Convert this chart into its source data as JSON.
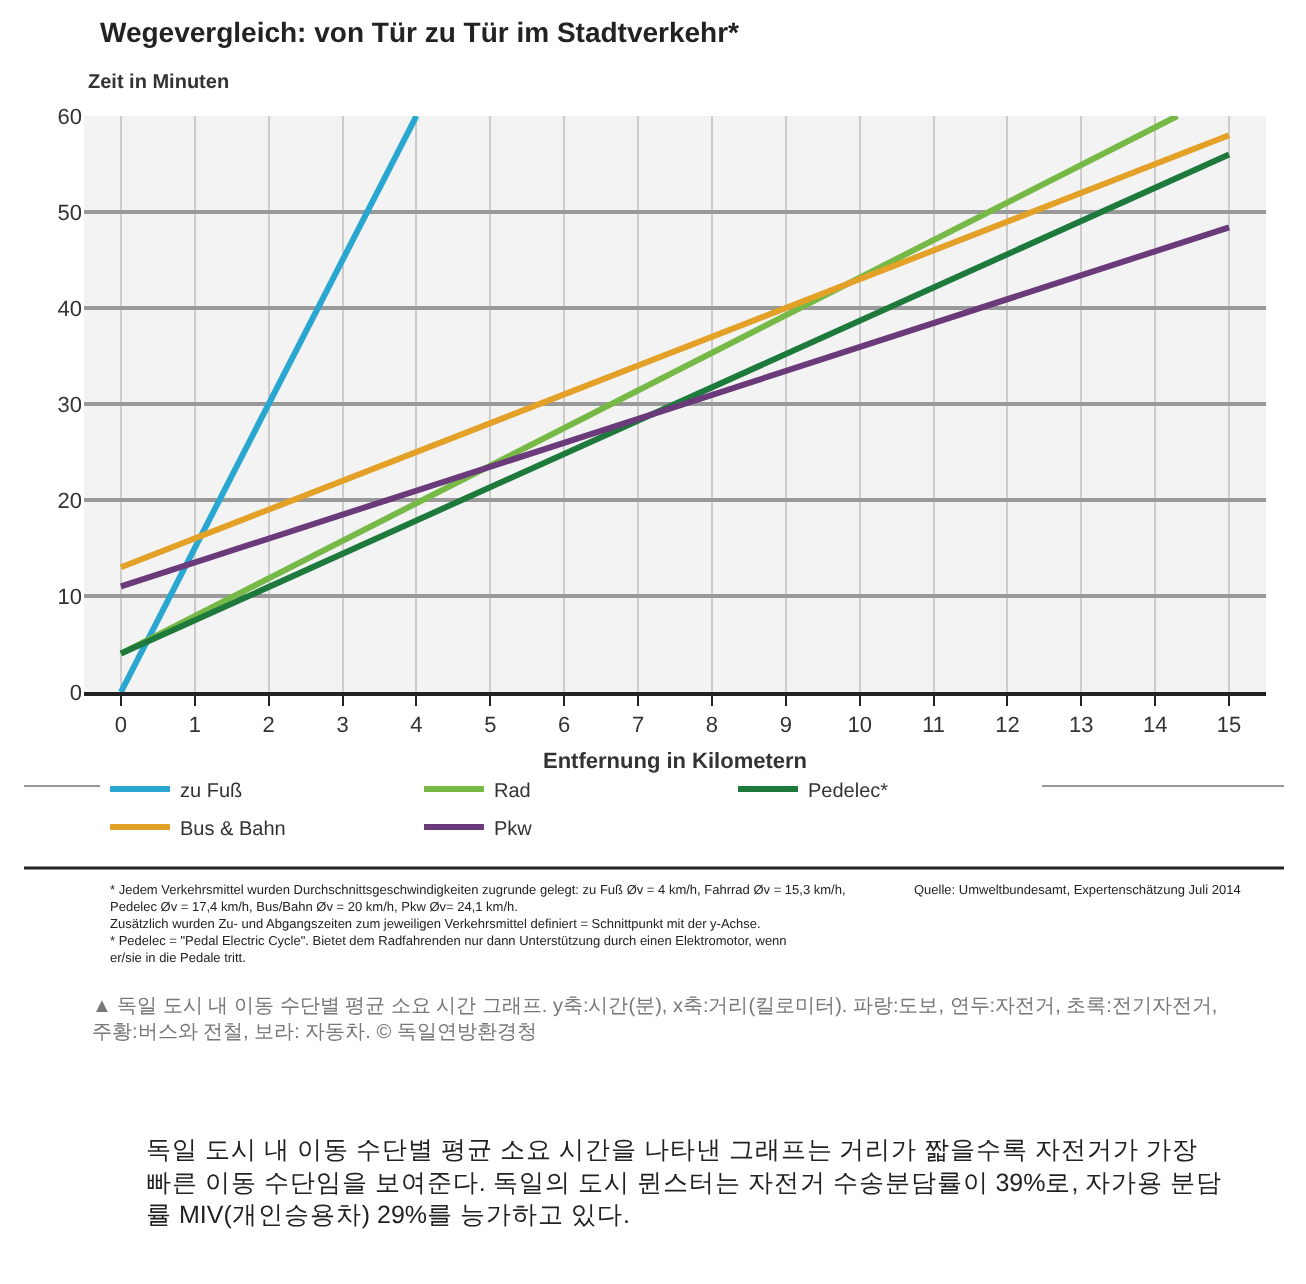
{
  "chart_data": {
    "type": "line",
    "title": "Wegevergleich: von Tür zu Tür im Stadtverkehr*",
    "ylabel": "Zeit in Minuten",
    "xlabel": "Entfernung in Kilometern",
    "xlim": [
      -0.5,
      15.5
    ],
    "xticks": [
      0,
      1,
      2,
      3,
      4,
      5,
      6,
      7,
      8,
      9,
      10,
      11,
      12,
      13,
      14,
      15
    ],
    "ylim": [
      0,
      60
    ],
    "yticks": [
      0,
      10,
      20,
      30,
      40,
      50,
      60
    ],
    "grid": true,
    "legend": "bottom",
    "marker": "none",
    "line_style": "solid",
    "series": [
      {
        "name": "zu Fuß",
        "color": "#2aa7d0",
        "x": [
          0,
          4
        ],
        "values": [
          0,
          60
        ]
      },
      {
        "name": "Rad",
        "color": "#76b947",
        "x": [
          0,
          14.3
        ],
        "values": [
          4,
          60
        ]
      },
      {
        "name": "Pedelec*",
        "color": "#1e7a3c",
        "x": [
          0,
          15
        ],
        "values": [
          4,
          56
        ]
      },
      {
        "name": "Bus & Bahn",
        "color": "#e3a227",
        "x": [
          0,
          15
        ],
        "values": [
          13,
          58
        ]
      },
      {
        "name": "Pkw",
        "color": "#6b3a7a",
        "x": [
          0,
          15
        ],
        "values": [
          11,
          48.4
        ]
      }
    ],
    "annotations": [
      "* Jedem Verkehrsmittel wurden Durchschnittsgeschwindigkeiten zugrunde gelegt: zu Fuß Øv = 4 km/h, Fahrrad Øv = 15,3 km/h,\nPedelec Øv = 17,4 km/h, Bus/Bahn Øv = 20 km/h, Pkw Øv= 24,1 km/h.\nZusätzlich wurden Zu- und Abgangszeiten zum jeweiligen Verkehrsmittel definiert = Schnittpunkt mit der y-Achse.\n* Pedelec = \"Pedal Electric Cycle\". Bietet dem Radfahrenden nur dann Unterstützung durch einen Elektromotor, wenn\ner/sie in die Pedale tritt.",
      "Quelle: Umweltbundesamt, Expertenschätzung Juli 2014",
      "▲ 독일 도시 내 이동 수단별 평균 소요 시간 그래프. y축:시간(분), x축:거리(킬로미터). 파랑:도보, 연두:자전거, 초록:전기자전거,\n주황:버스와 전철, 보라: 자동차. © 독일연방환경청",
      "독일 도시 내 이동 수단별 평균 소요 시간을 나타낸 그래프는 거리가 짧을수록 자전거가 가장\n빠른 이동 수단임을 보여준다. 독일의 도시 뮌스터는 자전거 수송분담률이 39%로, 자가용 분담\n률 MIV(개인승용차) 29%를 능가하고 있다."
    ]
  }
}
